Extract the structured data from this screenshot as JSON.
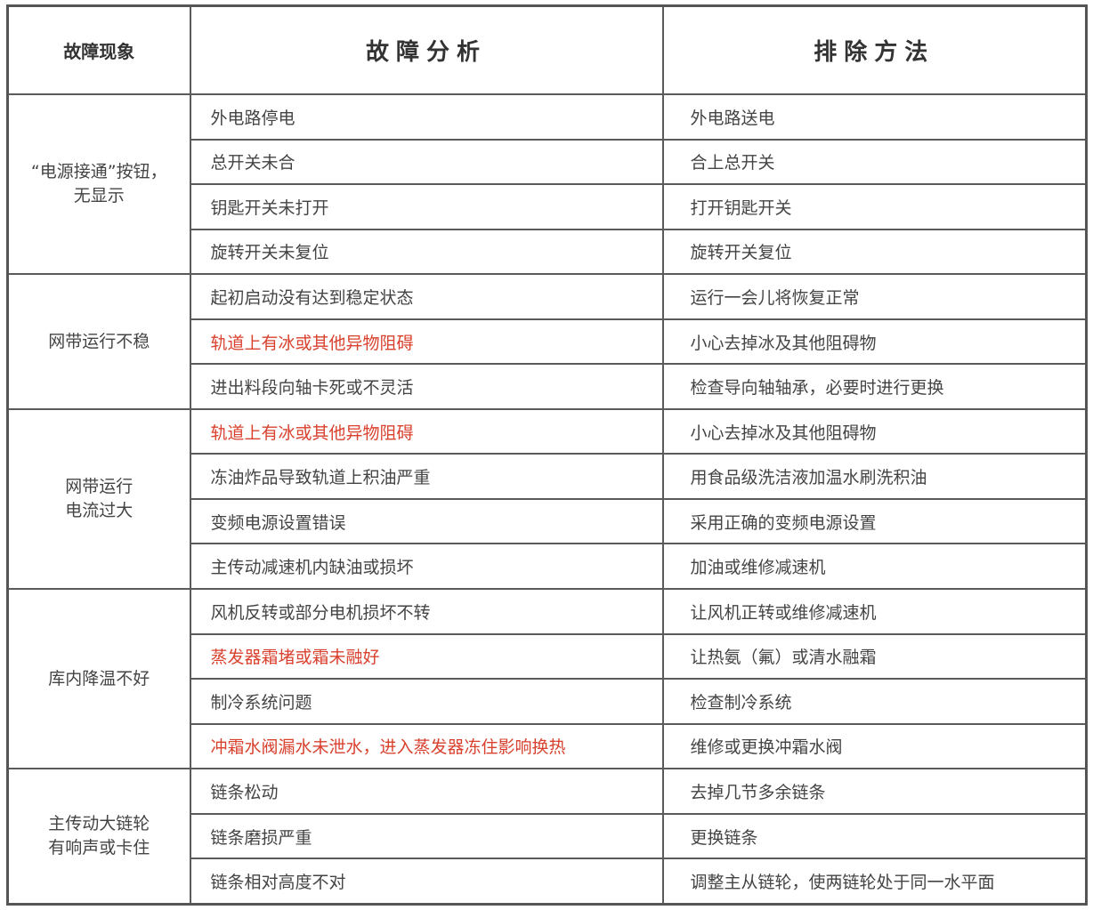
{
  "colors": {
    "text": "#444444",
    "highlight": "#d9412e",
    "border": "#555555"
  },
  "headers": [
    "故障现象",
    "故障分析",
    "排除方法"
  ],
  "groups": [
    {
      "symptom": "“电源接通”按钮，\n无显示",
      "rows": [
        {
          "cause": "外电路停电",
          "remedy": "外电路送电",
          "highlight": false
        },
        {
          "cause": "总开关未合",
          "remedy": "合上总开关",
          "highlight": false
        },
        {
          "cause": "钥匙开关未打开",
          "remedy": "打开钥匙开关",
          "highlight": false
        },
        {
          "cause": "旋转开关未复位",
          "remedy": "旋转开关复位",
          "highlight": false
        }
      ]
    },
    {
      "symptom": "网带运行不稳",
      "rows": [
        {
          "cause": "起初启动没有达到稳定状态",
          "remedy": "运行一会儿将恢复正常",
          "highlight": false
        },
        {
          "cause": "轨道上有冰或其他异物阻碍",
          "remedy": "小心去掉冰及其他阻碍物",
          "highlight": true
        },
        {
          "cause": "进出料段向轴卡死或不灵活",
          "remedy": "检查导向轴轴承，必要时进行更换",
          "highlight": false
        }
      ]
    },
    {
      "symptom": "网带运行\n电流过大",
      "rows": [
        {
          "cause": "轨道上有冰或其他异物阻碍",
          "remedy": "小心去掉冰及其他阻碍物",
          "highlight": true
        },
        {
          "cause": "冻油炸品导致轨道上积油严重",
          "remedy": "用食品级洗洁液加温水刷洗积油",
          "highlight": false
        },
        {
          "cause": "变频电源设置错误",
          "remedy": "采用正确的变频电源设置",
          "highlight": false
        },
        {
          "cause": "主传动减速机内缺油或损坏",
          "remedy": "加油或维修减速机",
          "highlight": false
        }
      ]
    },
    {
      "symptom": "库内降温不好",
      "rows": [
        {
          "cause": "风机反转或部分电机损坏不转",
          "remedy": "让风机正转或维修减速机",
          "highlight": false
        },
        {
          "cause": "蒸发器霜堵或霜未融好",
          "remedy": "让热氨（氟）或清水融霜",
          "highlight": true
        },
        {
          "cause": "制冷系统问题",
          "remedy": "检查制冷系统",
          "highlight": false
        },
        {
          "cause": "冲霜水阀漏水未泄水，进入蒸发器冻住影响换热",
          "remedy": "维修或更换冲霜水阀",
          "highlight": true
        }
      ]
    },
    {
      "symptom": "主传动大链轮\n有响声或卡住",
      "rows": [
        {
          "cause": "链条松动",
          "remedy": "去掉几节多余链条",
          "highlight": false
        },
        {
          "cause": "链条磨损严重",
          "remedy": "更换链条",
          "highlight": false
        },
        {
          "cause": "链条相对高度不对",
          "remedy": "调整主从链轮，使两链轮处于同一水平面",
          "highlight": false
        }
      ]
    }
  ]
}
